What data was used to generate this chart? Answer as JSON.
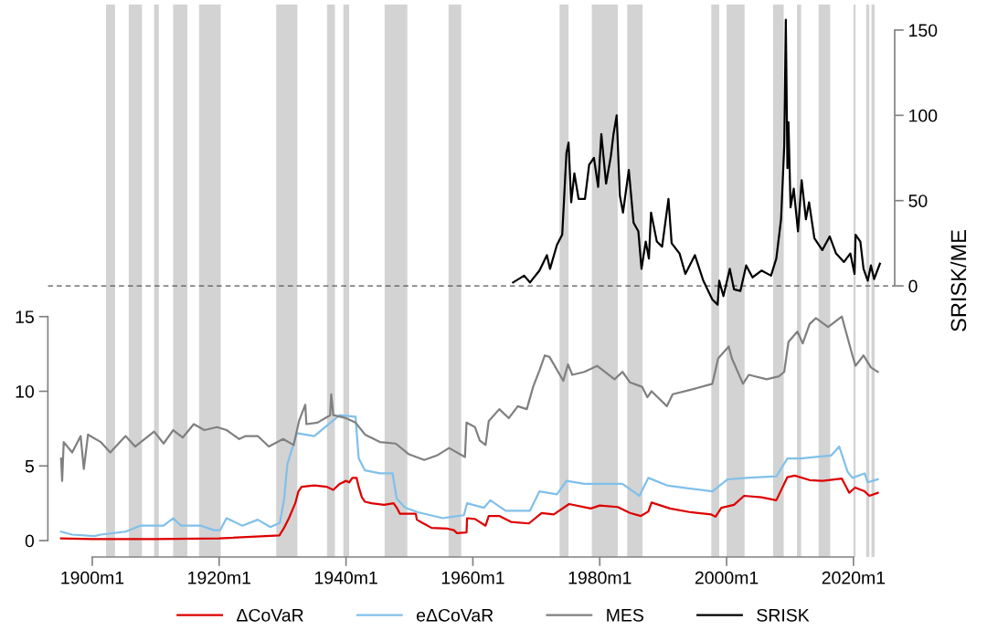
{
  "chart_data": {
    "type": "line",
    "y2label": "SRISK/ME",
    "xlim": [
      "1893-01",
      "2026-07"
    ],
    "xticks": [
      {
        "value": "1900-01",
        "label": "1900m1"
      },
      {
        "value": "1920-01",
        "label": "1920m1"
      },
      {
        "value": "1940-01",
        "label": "1940m1"
      },
      {
        "value": "1960-01",
        "label": "1960m1"
      },
      {
        "value": "1980-01",
        "label": "1980m1"
      },
      {
        "value": "2000-01",
        "label": "2000m1"
      },
      {
        "value": "2020-01",
        "label": "2020m1"
      }
    ],
    "ylim": [
      -1.1,
      35.9
    ],
    "yticks": [
      0,
      5,
      10,
      15
    ],
    "y2lim": [
      -159,
      165
    ],
    "y2ticks": [
      0,
      50,
      100,
      150
    ],
    "grid": false,
    "legend": "bottom",
    "line_style": "solid",
    "marker": "none",
    "series": [
      {
        "name": "ΔCoVaR",
        "color": "#dd0000",
        "x": [
          "1895-02",
          "1900-01",
          "1910-01",
          "1920-01",
          "1929-07",
          "1930-03",
          "1931-01",
          "1932-01",
          "1932-07",
          "1933-01",
          "1935-01",
          "1937-01",
          "1938-01",
          "1939-01",
          "1940-01",
          "1940-07",
          "1941-01",
          "1941-09",
          "1942-01",
          "1942-07",
          "1943-01",
          "1944-01",
          "1946-01",
          "1947-07",
          "1948-01",
          "1948-07",
          "1950-01",
          "1951-01",
          "1951-03",
          "1952-01",
          "1953-07",
          "1956-01",
          "1957-01",
          "1957-07",
          "1959-01",
          "1959-02",
          "1960-05",
          "1962-01",
          "1962-07",
          "1964-03",
          "1966-01",
          "1968-11",
          "1970-11",
          "1972-10",
          "1975-03",
          "1978-08",
          "1980-01",
          "1982-11",
          "1984-10",
          "1986-07",
          "1987-09",
          "1988-03",
          "1991-02",
          "1994-05",
          "1997-08",
          "1998-04",
          "1999-03",
          "2001-03",
          "2002-10",
          "2005-07",
          "2007-11",
          "2009-08",
          "2010-10",
          "2013-02",
          "2015-02",
          "2018-03",
          "2019-05",
          "2020-04",
          "2021-10",
          "2022-07",
          "2023-11"
        ],
        "values": [
          0.15,
          0.1,
          0.1,
          0.15,
          0.35,
          0.8,
          1.5,
          2.5,
          3.3,
          3.6,
          3.7,
          3.6,
          3.4,
          3.8,
          4.0,
          3.9,
          4.2,
          4.2,
          3.6,
          2.9,
          2.6,
          2.5,
          2.4,
          2.5,
          2.2,
          1.8,
          1.8,
          1.8,
          1.4,
          1.2,
          0.85,
          0.8,
          0.7,
          0.5,
          0.55,
          1.5,
          1.45,
          1.0,
          1.65,
          1.65,
          1.25,
          1.15,
          1.85,
          1.75,
          2.45,
          2.15,
          2.35,
          2.25,
          1.85,
          1.65,
          1.95,
          2.55,
          2.15,
          1.9,
          1.75,
          1.6,
          2.2,
          2.4,
          3.0,
          2.9,
          2.7,
          4.25,
          4.35,
          4.05,
          4.0,
          4.15,
          3.2,
          3.55,
          3.3,
          3.0,
          3.2
        ]
      },
      {
        "name": "eΔCoVaR",
        "color": "#80c0ea",
        "x": [
          "1895-02",
          "1896-11",
          "1900-05",
          "1901-05",
          "1905-04",
          "1907-08",
          "1911-04",
          "1912-10",
          "1914-01",
          "1917-03",
          "1919-03",
          "1920-03",
          "1921-03",
          "1923-09",
          "1926-02",
          "1928-02",
          "1929-08",
          "1930-04",
          "1930-10",
          "1932-04",
          "1935-01",
          "1937-01",
          "1939-01",
          "1941-07",
          "1942-01",
          "1943-01",
          "1945-05",
          "1947-05",
          "1948-01",
          "1949-05",
          "1951-05",
          "1953-05",
          "1955-04",
          "1956-10",
          "1958-08",
          "1959-02",
          "1961-10",
          "1962-10",
          "1965-03",
          "1969-01",
          "1970-07",
          "1973-04",
          "1974-10",
          "1977-08",
          "1980-07",
          "1983-08",
          "1986-04",
          "1987-09",
          "1990-08",
          "1994-01",
          "1997-10",
          "2000-03",
          "2003-02",
          "2007-11",
          "2009-08",
          "2011-09",
          "2014-02",
          "2016-07",
          "2017-10",
          "2019-02",
          "2019-11",
          "2021-10",
          "2022-04",
          "2023-11"
        ],
        "values": [
          0.6,
          0.4,
          0.3,
          0.4,
          0.6,
          1.0,
          1.0,
          1.5,
          1.0,
          1.0,
          0.7,
          0.7,
          1.5,
          1.0,
          1.4,
          0.9,
          1.2,
          2.8,
          5.1,
          7.2,
          7.0,
          7.7,
          8.4,
          8.3,
          5.5,
          4.7,
          4.5,
          4.5,
          2.8,
          2.2,
          1.9,
          1.7,
          1.5,
          1.6,
          1.7,
          2.5,
          2.2,
          2.7,
          2.0,
          2.0,
          3.3,
          3.1,
          4.0,
          3.8,
          3.8,
          3.8,
          3.0,
          4.2,
          3.7,
          3.5,
          3.3,
          4.1,
          4.2,
          4.3,
          5.5,
          5.5,
          5.6,
          5.7,
          6.3,
          4.6,
          4.2,
          4.5,
          3.9,
          4.1
        ]
      },
      {
        "name": "MES",
        "color": "#808080",
        "x": [
          "1895-02",
          "1895-04",
          "1895-07",
          "1896-11",
          "1898-03",
          "1898-09",
          "1899-05",
          "1901-05",
          "1902-11",
          "1905-04",
          "1906-10",
          "1909-10",
          "1911-04",
          "1912-10",
          "1914-04",
          "1916-01",
          "1917-09",
          "1919-09",
          "1921-03",
          "1923-03",
          "1924-03",
          "1926-02",
          "1927-11",
          "1930-02",
          "1931-10",
          "1932-08",
          "1933-08",
          "1933-10",
          "1935-07",
          "1937-07",
          "1937-09",
          "1938-01",
          "1940-01",
          "1941-07",
          "1943-01",
          "1945-05",
          "1947-11",
          "1949-11",
          "1952-05",
          "1954-05",
          "1956-04",
          "1958-10",
          "1959-01",
          "1960-05",
          "1961-02",
          "1962-01",
          "1962-07",
          "1964-03",
          "1965-09",
          "1967-02",
          "1968-07",
          "1969-07",
          "1970-07",
          "1971-05",
          "1972-02",
          "1974-04",
          "1975-01",
          "1975-09",
          "1977-08",
          "1979-08",
          "1982-05",
          "1983-08",
          "1984-10",
          "1986-09",
          "1987-07",
          "1988-03",
          "1990-08",
          "1991-07",
          "1994-05",
          "1997-10",
          "1998-09",
          "2000-05",
          "2000-11",
          "2002-08",
          "2003-07",
          "2006-05",
          "2008-04",
          "2009-02",
          "2009-10",
          "2011-03",
          "2012-01",
          "2013-02",
          "2014-02",
          "2016-01",
          "2018-03",
          "2019-11",
          "2020-05",
          "2021-08",
          "2022-10",
          "2023-11"
        ],
        "values": [
          5.5,
          4.0,
          6.6,
          5.9,
          7.0,
          4.8,
          7.1,
          6.6,
          5.9,
          7.0,
          6.3,
          7.3,
          6.5,
          7.4,
          6.9,
          7.8,
          7.4,
          7.6,
          7.4,
          6.8,
          7.0,
          7.0,
          6.3,
          6.8,
          6.4,
          8.0,
          9.1,
          7.8,
          7.9,
          8.4,
          9.8,
          8.4,
          8.2,
          7.9,
          7.1,
          6.6,
          6.5,
          5.8,
          5.4,
          5.7,
          6.2,
          5.6,
          7.9,
          7.6,
          6.7,
          6.4,
          8.0,
          8.8,
          8.2,
          9.0,
          8.8,
          10.3,
          11.4,
          12.4,
          12.3,
          10.7,
          11.8,
          11.1,
          11.3,
          11.7,
          10.8,
          11.3,
          10.6,
          10.3,
          9.6,
          10.0,
          9.0,
          9.8,
          10.1,
          10.5,
          12.2,
          13.0,
          12.2,
          10.5,
          11.1,
          10.8,
          11.0,
          11.3,
          13.3,
          14.0,
          13.2,
          14.5,
          14.9,
          14.3,
          15.0,
          12.4,
          11.7,
          12.4,
          11.6,
          11.3
        ]
      },
      {
        "name": "SRISK",
        "color": "#000000",
        "axis": "y2",
        "x": [
          "1966-05",
          "1968-02",
          "1969-01",
          "1970-07",
          "1971-09",
          "1972-03",
          "1973-04",
          "1974-02",
          "1974-10",
          "1975-02",
          "1975-07",
          "1976-01",
          "1976-09",
          "1977-09",
          "1978-05",
          "1979-02",
          "1979-10",
          "1980-04",
          "1981-01",
          "1981-10",
          "1982-03",
          "1982-09",
          "1983-03",
          "1983-09",
          "1984-08",
          "1985-05",
          "1986-02",
          "1986-08",
          "1987-04",
          "1987-10",
          "1988-02",
          "1989-01",
          "1989-11",
          "1990-11",
          "1991-05",
          "1992-08",
          "1993-07",
          "1995-01",
          "1996-05",
          "1997-10",
          "1998-08",
          "1998-11",
          "1999-07",
          "2000-07",
          "2001-03",
          "2002-03",
          "2003-02",
          "2004-02",
          "2005-07",
          "2007-01",
          "2007-11",
          "2008-08",
          "2009-02",
          "2009-05",
          "2009-08",
          "2009-10",
          "2010-02",
          "2010-08",
          "2011-04",
          "2011-11",
          "2012-07",
          "2013-01",
          "2013-11",
          "2015-02",
          "2016-04",
          "2017-04",
          "2018-07",
          "2019-07",
          "2020-03",
          "2020-05",
          "2021-02",
          "2021-08",
          "2022-04",
          "2022-10",
          "2023-04",
          "2024-03"
        ],
        "values": [
          2,
          6,
          2,
          9,
          18,
          10,
          24,
          30,
          78,
          84,
          49,
          66,
          51,
          51,
          71,
          75,
          58,
          89,
          60,
          76,
          89,
          100,
          53,
          43,
          68,
          37,
          32,
          10,
          26,
          16,
          43,
          26,
          23,
          51,
          25,
          19,
          7,
          18,
          3,
          -8,
          -11,
          3,
          -6,
          10,
          -2,
          -3,
          12,
          5,
          9,
          6,
          16,
          39,
          82,
          156,
          69,
          96,
          46,
          57,
          32,
          62,
          39,
          49,
          28,
          21,
          29,
          19,
          14,
          19,
          7,
          30,
          26,
          10,
          3,
          12,
          4,
          13
        ]
      }
    ],
    "bands": [
      {
        "axis": "x",
        "from": "1902-03",
        "to": "1903-08",
        "color": "#d3d3d3"
      },
      {
        "axis": "x",
        "from": "1905-10",
        "to": "1907-11",
        "color": "#d3d3d3"
      },
      {
        "axis": "x",
        "from": "1909-10",
        "to": "1910-07",
        "color": "#d3d3d3"
      },
      {
        "axis": "x",
        "from": "1912-10",
        "to": "1915-01",
        "color": "#d3d3d3"
      },
      {
        "axis": "x",
        "from": "1916-11",
        "to": "1920-04",
        "color": "#d3d3d3"
      },
      {
        "axis": "x",
        "from": "1929-01",
        "to": "1932-05",
        "color": "#d3d3d3"
      },
      {
        "axis": "x",
        "from": "1937-01",
        "to": "1938-04",
        "color": "#d3d3d3"
      },
      {
        "axis": "x",
        "from": "1939-08",
        "to": "1940-07",
        "color": "#d3d3d3"
      },
      {
        "axis": "x",
        "from": "1946-02",
        "to": "1949-09",
        "color": "#d3d3d3"
      },
      {
        "axis": "x",
        "from": "1956-03",
        "to": "1958-03",
        "color": "#d3d3d3"
      },
      {
        "axis": "x",
        "from": "1973-09",
        "to": "1975-02",
        "color": "#d3d3d3"
      },
      {
        "axis": "x",
        "from": "1978-10",
        "to": "1982-11",
        "color": "#d3d3d3"
      },
      {
        "axis": "x",
        "from": "1984-05",
        "to": "1986-10",
        "color": "#d3d3d3"
      },
      {
        "axis": "x",
        "from": "1997-08",
        "to": "1998-11",
        "color": "#d3d3d3"
      },
      {
        "axis": "x",
        "from": "2000-01",
        "to": "2002-11",
        "color": "#d3d3d3"
      },
      {
        "axis": "x",
        "from": "2007-05",
        "to": "2009-01",
        "color": "#d3d3d3"
      },
      {
        "axis": "x",
        "from": "2011-02",
        "to": "2011-10",
        "color": "#d3d3d3"
      },
      {
        "axis": "x",
        "from": "2014-07",
        "to": "2016-05",
        "color": "#d3d3d3"
      },
      {
        "axis": "x",
        "from": "2020-01",
        "to": "2020-05",
        "color": "#d3d3d3"
      },
      {
        "axis": "x",
        "from": "2022-01",
        "to": "2022-07",
        "color": "#d3d3d3"
      },
      {
        "axis": "x",
        "from": "2022-11",
        "to": "2023-05",
        "color": "#d3d3d3"
      }
    ],
    "ref_lines": [
      {
        "axis": "y2",
        "value": 0,
        "color": "#555555",
        "line_style": "dashed"
      }
    ]
  }
}
